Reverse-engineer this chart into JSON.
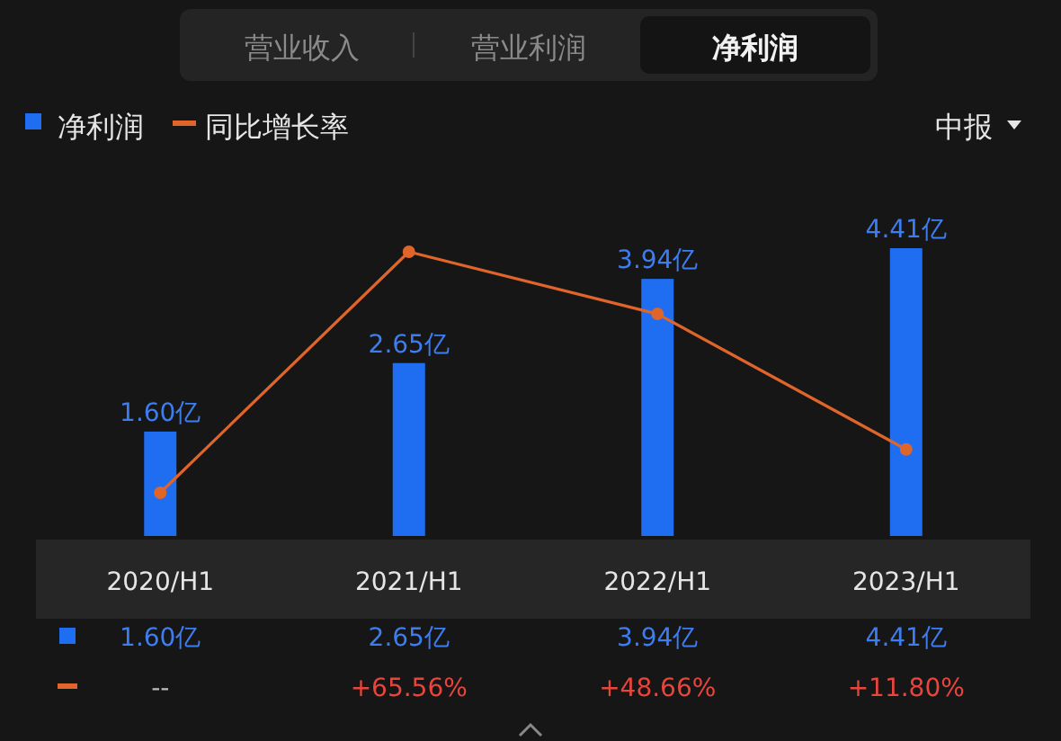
{
  "chart_data": {
    "type": "bar",
    "title": "净利润",
    "annotations": [
      "营业收入",
      "营业利润",
      "中报"
    ],
    "categories": [
      "2020/H1",
      "2021/H1",
      "2022/H1",
      "2023/H1"
    ],
    "legend": "top left",
    "marker": "circle",
    "series": [
      {
        "name": "净利润",
        "color": "#1f6ef2",
        "values": [
          1.6,
          2.65,
          3.94,
          4.41
        ],
        "value_labels": [
          "1.60亿",
          "2.65亿",
          "3.94亿",
          "4.41亿"
        ]
      },
      {
        "name": "同比增长率",
        "type": "line",
        "axis": "y2",
        "color": "#e0652a",
        "values": [
          0,
          65.56,
          48.66,
          11.8
        ],
        "value_labels": [
          "--",
          "+65.56%",
          "+48.66%",
          "+11.80%"
        ]
      }
    ]
  }
}
